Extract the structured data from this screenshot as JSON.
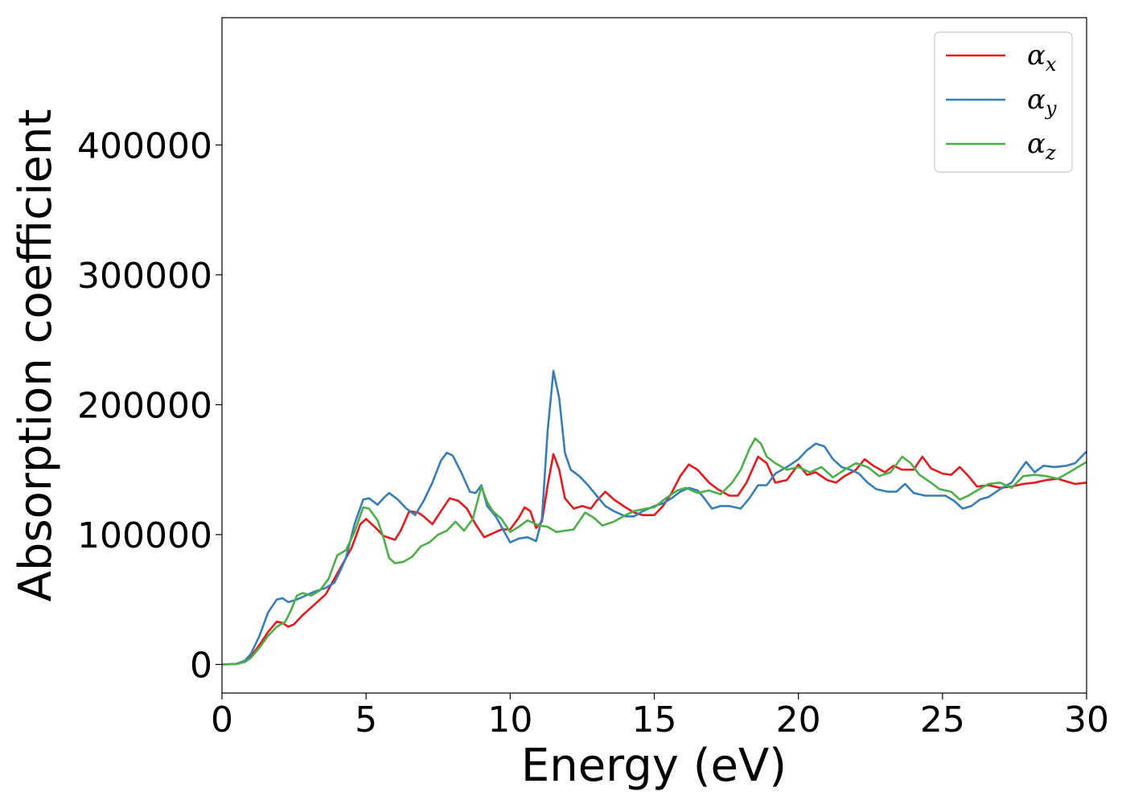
{
  "chart_data": {
    "type": "line",
    "title": "",
    "xlabel": "Energy (eV)",
    "ylabel": "Absorption coefficient",
    "xlim": [
      0,
      30
    ],
    "ylim": [
      -22000,
      498000
    ],
    "xticks": [
      0,
      5,
      10,
      15,
      20,
      25,
      30
    ],
    "yticks": [
      0,
      100000,
      200000,
      300000,
      400000
    ],
    "grid": false,
    "legend_position": "top-right",
    "series": [
      {
        "name": "α",
        "subscript": "x",
        "color": "#e41a1c",
        "points": [
          [
            0,
            0
          ],
          [
            0.5,
            500
          ],
          [
            0.8,
            2000
          ],
          [
            1.0,
            6000
          ],
          [
            1.3,
            15000
          ],
          [
            1.6,
            25000
          ],
          [
            1.9,
            33000
          ],
          [
            2.1,
            32000
          ],
          [
            2.3,
            29000
          ],
          [
            2.5,
            31000
          ],
          [
            2.8,
            38000
          ],
          [
            3.2,
            46000
          ],
          [
            3.6,
            54000
          ],
          [
            4.0,
            70000
          ],
          [
            4.2,
            78000
          ],
          [
            4.5,
            90000
          ],
          [
            4.8,
            108000
          ],
          [
            5.0,
            112000
          ],
          [
            5.3,
            106000
          ],
          [
            5.6,
            99000
          ],
          [
            6.0,
            96000
          ],
          [
            6.2,
            103000
          ],
          [
            6.5,
            118000
          ],
          [
            6.8,
            117000
          ],
          [
            7.0,
            114000
          ],
          [
            7.3,
            108000
          ],
          [
            7.6,
            118000
          ],
          [
            7.9,
            128000
          ],
          [
            8.2,
            126000
          ],
          [
            8.5,
            120000
          ],
          [
            8.8,
            108000
          ],
          [
            9.1,
            98000
          ],
          [
            9.4,
            101000
          ],
          [
            9.7,
            104000
          ],
          [
            10.0,
            104000
          ],
          [
            10.3,
            113000
          ],
          [
            10.5,
            121000
          ],
          [
            10.7,
            118000
          ],
          [
            10.9,
            105000
          ],
          [
            11.1,
            110000
          ],
          [
            11.3,
            138000
          ],
          [
            11.5,
            162000
          ],
          [
            11.7,
            150000
          ],
          [
            11.9,
            128000
          ],
          [
            12.2,
            120000
          ],
          [
            12.5,
            122000
          ],
          [
            12.8,
            120000
          ],
          [
            13.0,
            126000
          ],
          [
            13.3,
            133000
          ],
          [
            13.6,
            127000
          ],
          [
            14.0,
            121000
          ],
          [
            14.3,
            117000
          ],
          [
            14.6,
            115000
          ],
          [
            15.0,
            115000
          ],
          [
            15.3,
            122000
          ],
          [
            15.6,
            132000
          ],
          [
            15.9,
            145000
          ],
          [
            16.2,
            154000
          ],
          [
            16.5,
            150000
          ],
          [
            16.9,
            140000
          ],
          [
            17.2,
            135000
          ],
          [
            17.6,
            130000
          ],
          [
            17.9,
            130000
          ],
          [
            18.2,
            140000
          ],
          [
            18.6,
            160000
          ],
          [
            18.9,
            155000
          ],
          [
            19.2,
            140000
          ],
          [
            19.6,
            142000
          ],
          [
            20.0,
            154000
          ],
          [
            20.3,
            146000
          ],
          [
            20.6,
            148000
          ],
          [
            21.0,
            142000
          ],
          [
            21.3,
            140000
          ],
          [
            21.6,
            145000
          ],
          [
            22.0,
            150000
          ],
          [
            22.3,
            158000
          ],
          [
            22.6,
            153000
          ],
          [
            23.0,
            148000
          ],
          [
            23.3,
            153000
          ],
          [
            23.6,
            150000
          ],
          [
            24.0,
            150000
          ],
          [
            24.3,
            160000
          ],
          [
            24.6,
            151000
          ],
          [
            25.0,
            147000
          ],
          [
            25.3,
            146000
          ],
          [
            25.6,
            152000
          ],
          [
            25.9,
            145000
          ],
          [
            26.2,
            137000
          ],
          [
            26.6,
            138000
          ],
          [
            27.0,
            136000
          ],
          [
            27.4,
            137000
          ],
          [
            27.8,
            139000
          ],
          [
            28.2,
            140000
          ],
          [
            28.6,
            142000
          ],
          [
            29.0,
            143000
          ],
          [
            29.3,
            141000
          ],
          [
            29.6,
            139000
          ],
          [
            30.0,
            140000
          ]
        ]
      },
      {
        "name": "α",
        "subscript": "y",
        "color": "#377eb8",
        "points": [
          [
            0,
            0
          ],
          [
            0.5,
            500
          ],
          [
            0.8,
            3000
          ],
          [
            1.0,
            8000
          ],
          [
            1.3,
            22000
          ],
          [
            1.6,
            40000
          ],
          [
            1.9,
            50000
          ],
          [
            2.1,
            51000
          ],
          [
            2.3,
            48000
          ],
          [
            2.6,
            50000
          ],
          [
            2.9,
            53000
          ],
          [
            3.2,
            56000
          ],
          [
            3.6,
            59000
          ],
          [
            3.9,
            63000
          ],
          [
            4.1,
            72000
          ],
          [
            4.3,
            82000
          ],
          [
            4.6,
            108000
          ],
          [
            4.9,
            127000
          ],
          [
            5.1,
            128000
          ],
          [
            5.4,
            123000
          ],
          [
            5.6,
            128000
          ],
          [
            5.8,
            132000
          ],
          [
            6.1,
            127000
          ],
          [
            6.4,
            120000
          ],
          [
            6.7,
            115000
          ],
          [
            7.0,
            126000
          ],
          [
            7.3,
            140000
          ],
          [
            7.6,
            157000
          ],
          [
            7.8,
            163000
          ],
          [
            8.0,
            161000
          ],
          [
            8.3,
            148000
          ],
          [
            8.6,
            133000
          ],
          [
            8.8,
            132000
          ],
          [
            9.0,
            138000
          ],
          [
            9.2,
            122000
          ],
          [
            9.5,
            114000
          ],
          [
            9.8,
            102000
          ],
          [
            10.0,
            94000
          ],
          [
            10.3,
            97000
          ],
          [
            10.6,
            98000
          ],
          [
            10.9,
            95000
          ],
          [
            11.1,
            112000
          ],
          [
            11.3,
            180000
          ],
          [
            11.5,
            226000
          ],
          [
            11.7,
            205000
          ],
          [
            11.9,
            163000
          ],
          [
            12.1,
            150000
          ],
          [
            12.4,
            145000
          ],
          [
            12.7,
            138000
          ],
          [
            13.0,
            130000
          ],
          [
            13.3,
            122000
          ],
          [
            13.6,
            118000
          ],
          [
            14.0,
            114000
          ],
          [
            14.3,
            114000
          ],
          [
            14.6,
            118000
          ],
          [
            15.0,
            122000
          ],
          [
            15.3,
            124000
          ],
          [
            15.6,
            128000
          ],
          [
            15.9,
            133000
          ],
          [
            16.2,
            136000
          ],
          [
            16.5,
            134000
          ],
          [
            16.7,
            129000
          ],
          [
            17.0,
            120000
          ],
          [
            17.3,
            122000
          ],
          [
            17.6,
            122000
          ],
          [
            18.0,
            120000
          ],
          [
            18.3,
            128000
          ],
          [
            18.6,
            138000
          ],
          [
            18.9,
            138000
          ],
          [
            19.2,
            147000
          ],
          [
            19.6,
            152000
          ],
          [
            20.0,
            158000
          ],
          [
            20.3,
            165000
          ],
          [
            20.6,
            170000
          ],
          [
            20.9,
            168000
          ],
          [
            21.2,
            158000
          ],
          [
            21.5,
            152000
          ],
          [
            21.8,
            150000
          ],
          [
            22.1,
            147000
          ],
          [
            22.4,
            140000
          ],
          [
            22.7,
            135000
          ],
          [
            23.1,
            133000
          ],
          [
            23.4,
            133000
          ],
          [
            23.7,
            139000
          ],
          [
            24.0,
            132000
          ],
          [
            24.4,
            130000
          ],
          [
            24.8,
            130000
          ],
          [
            25.1,
            130000
          ],
          [
            25.4,
            126000
          ],
          [
            25.7,
            120000
          ],
          [
            26.0,
            122000
          ],
          [
            26.3,
            127000
          ],
          [
            26.6,
            129000
          ],
          [
            27.0,
            135000
          ],
          [
            27.4,
            140000
          ],
          [
            27.7,
            150000
          ],
          [
            27.9,
            156000
          ],
          [
            28.2,
            148000
          ],
          [
            28.5,
            153000
          ],
          [
            28.9,
            152000
          ],
          [
            29.3,
            153000
          ],
          [
            29.6,
            155000
          ],
          [
            30.0,
            164000
          ]
        ]
      },
      {
        "name": "α",
        "subscript": "z",
        "color": "#4daf4a",
        "points": [
          [
            0,
            0
          ],
          [
            0.5,
            300
          ],
          [
            0.8,
            2000
          ],
          [
            1.0,
            5000
          ],
          [
            1.3,
            13000
          ],
          [
            1.6,
            22000
          ],
          [
            1.9,
            29000
          ],
          [
            2.2,
            33000
          ],
          [
            2.4,
            42000
          ],
          [
            2.6,
            53000
          ],
          [
            2.8,
            55000
          ],
          [
            3.1,
            53000
          ],
          [
            3.4,
            57000
          ],
          [
            3.7,
            66000
          ],
          [
            4.0,
            84000
          ],
          [
            4.3,
            88000
          ],
          [
            4.6,
            102000
          ],
          [
            4.9,
            121000
          ],
          [
            5.1,
            120000
          ],
          [
            5.4,
            111000
          ],
          [
            5.6,
            98000
          ],
          [
            5.8,
            82000
          ],
          [
            6.0,
            78000
          ],
          [
            6.3,
            79000
          ],
          [
            6.6,
            83000
          ],
          [
            6.9,
            91000
          ],
          [
            7.2,
            94000
          ],
          [
            7.5,
            100000
          ],
          [
            7.8,
            103000
          ],
          [
            8.1,
            110000
          ],
          [
            8.4,
            103000
          ],
          [
            8.7,
            112000
          ],
          [
            9.0,
            137000
          ],
          [
            9.2,
            125000
          ],
          [
            9.4,
            118000
          ],
          [
            9.7,
            112000
          ],
          [
            10.0,
            102000
          ],
          [
            10.3,
            106000
          ],
          [
            10.6,
            111000
          ],
          [
            11.0,
            107000
          ],
          [
            11.3,
            106000
          ],
          [
            11.6,
            102000
          ],
          [
            11.9,
            103000
          ],
          [
            12.2,
            104000
          ],
          [
            12.6,
            117000
          ],
          [
            12.9,
            113000
          ],
          [
            13.2,
            107000
          ],
          [
            13.6,
            110000
          ],
          [
            14.0,
            115000
          ],
          [
            14.3,
            118000
          ],
          [
            14.7,
            120000
          ],
          [
            15.0,
            121000
          ],
          [
            15.4,
            128000
          ],
          [
            15.8,
            134000
          ],
          [
            16.1,
            136000
          ],
          [
            16.5,
            132000
          ],
          [
            16.9,
            134000
          ],
          [
            17.3,
            131000
          ],
          [
            17.7,
            140000
          ],
          [
            18.0,
            150000
          ],
          [
            18.3,
            166000
          ],
          [
            18.5,
            174000
          ],
          [
            18.7,
            170000
          ],
          [
            18.9,
            160000
          ],
          [
            19.2,
            155000
          ],
          [
            19.6,
            150000
          ],
          [
            20.0,
            152000
          ],
          [
            20.4,
            148000
          ],
          [
            20.8,
            152000
          ],
          [
            21.2,
            144000
          ],
          [
            21.6,
            150000
          ],
          [
            22.0,
            155000
          ],
          [
            22.4,
            152000
          ],
          [
            22.8,
            145000
          ],
          [
            23.2,
            148000
          ],
          [
            23.6,
            160000
          ],
          [
            23.9,
            155000
          ],
          [
            24.2,
            146000
          ],
          [
            24.6,
            140000
          ],
          [
            24.9,
            135000
          ],
          [
            25.3,
            133000
          ],
          [
            25.6,
            127000
          ],
          [
            25.9,
            130000
          ],
          [
            26.2,
            134000
          ],
          [
            26.6,
            139000
          ],
          [
            27.0,
            140000
          ],
          [
            27.4,
            136000
          ],
          [
            27.8,
            145000
          ],
          [
            28.2,
            146000
          ],
          [
            28.6,
            145000
          ],
          [
            29.0,
            143000
          ],
          [
            29.4,
            148000
          ],
          [
            30.0,
            156000
          ]
        ]
      }
    ]
  }
}
